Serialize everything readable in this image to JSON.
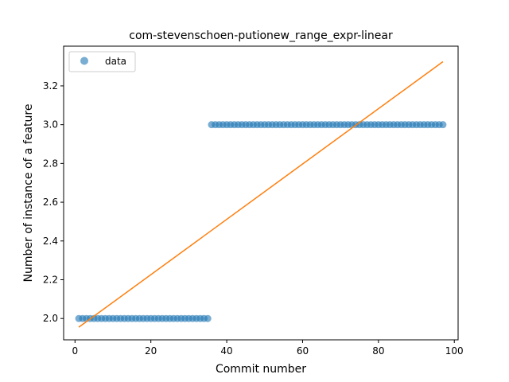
{
  "chart_data": {
    "type": "scatter",
    "title": "com-stevenschoen-putionew_range_expr-linear",
    "xlabel": "Commit number",
    "ylabel": "Number of instance of a feature",
    "xlim": [
      -3,
      101
    ],
    "ylim": [
      1.89,
      3.405
    ],
    "xticks": [
      0,
      20,
      40,
      60,
      80,
      100
    ],
    "yticks": [
      2.0,
      2.2,
      2.4,
      2.6,
      2.8,
      3.0,
      3.2
    ],
    "xtick_labels": [
      "0",
      "20",
      "40",
      "60",
      "80",
      "100"
    ],
    "ytick_labels": [
      "2.0",
      "2.2",
      "2.4",
      "2.6",
      "2.8",
      "3.0",
      "3.2"
    ],
    "grid": false,
    "legend": {
      "position": "top-left",
      "entries": [
        "data"
      ]
    },
    "series": [
      {
        "name": "data",
        "kind": "scatter",
        "color": "#1f77b4",
        "segments": [
          {
            "x_start": 1,
            "x_end": 35,
            "y": 2.0
          },
          {
            "x_start": 36,
            "x_end": 97,
            "y": 3.0
          }
        ]
      },
      {
        "kind": "line",
        "color": "#ff7f0e",
        "x": [
          1,
          97
        ],
        "y": [
          1.955,
          3.325
        ]
      }
    ]
  }
}
